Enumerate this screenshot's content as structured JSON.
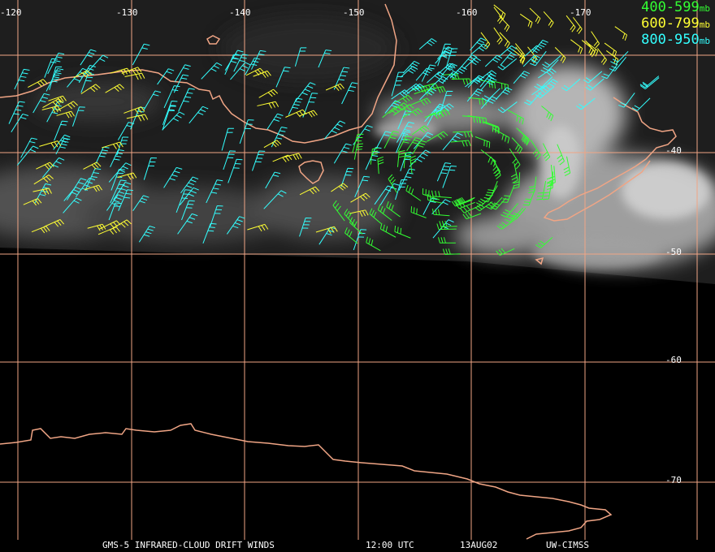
{
  "colors": {
    "grid": "#f0a585",
    "coast": "#f0a585",
    "level_400_599": "#33ff33",
    "level_600_799": "#ffff33",
    "level_800_950": "#33ffff",
    "background": "#000000",
    "clouds": "#bfbfbf"
  },
  "longitude_labels": [
    "-120",
    "-130",
    "-140",
    "-150",
    "-160",
    "-170"
  ],
  "latitude_labels": [
    "-40",
    "-50",
    "-60",
    "-70"
  ],
  "legend": {
    "unit": "mb",
    "levels": [
      {
        "range": "400-599",
        "color": "#33ff33"
      },
      {
        "range": "600-799",
        "color": "#ffff33"
      },
      {
        "range": "800-950",
        "color": "#33ffff"
      }
    ]
  },
  "footer": {
    "product": "GMS-5 INFRARED-CLOUD DRIFT WINDS",
    "time": "12:00 UTC",
    "date": "13AUG02",
    "source": "UW-CIMSS"
  }
}
